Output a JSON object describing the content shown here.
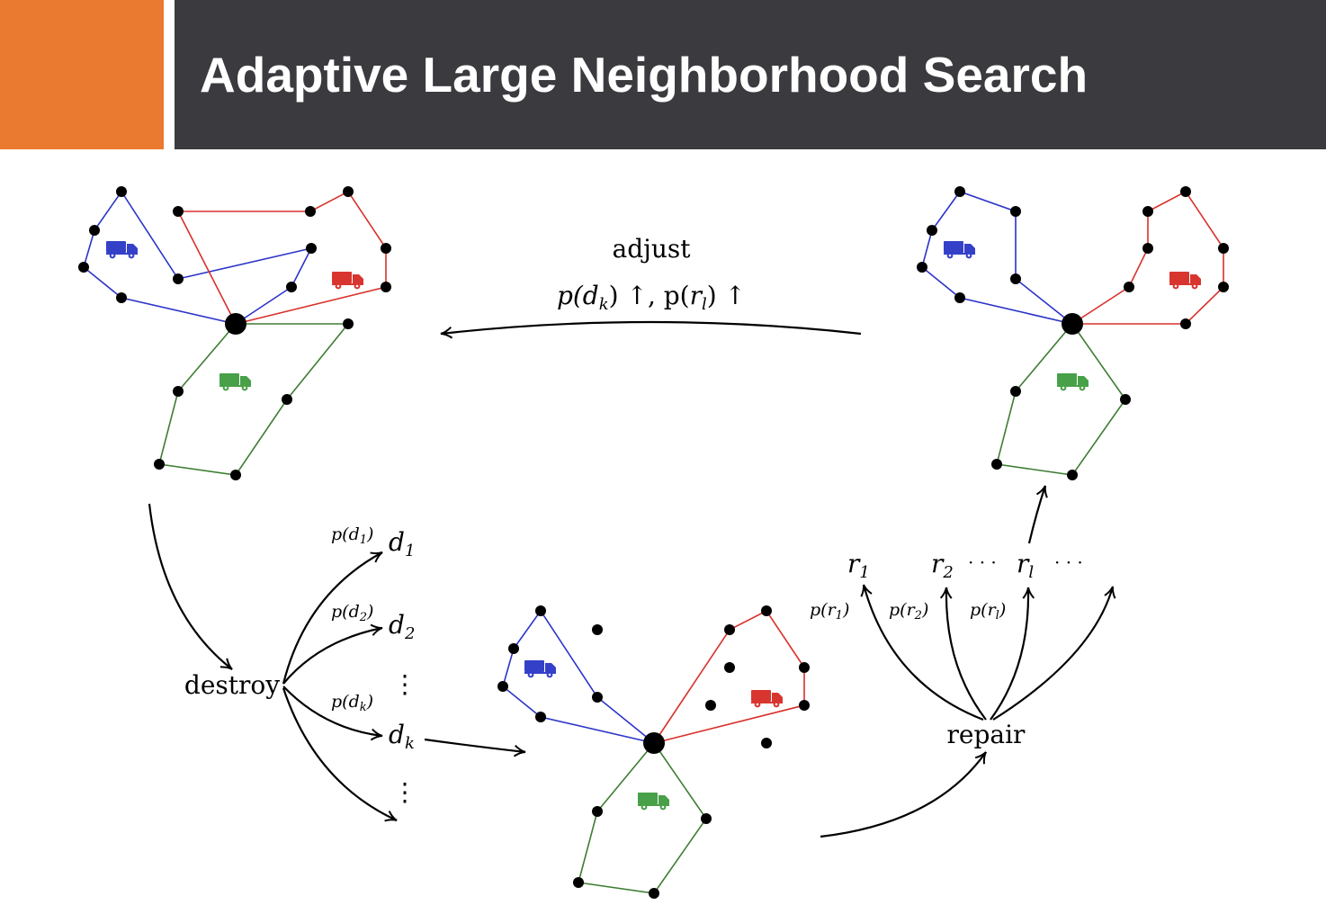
{
  "slide": {
    "title": "Adaptive Large Neighborhood Search",
    "accent_color": "#E97A30",
    "title_bar_color": "#3B3A3F"
  },
  "colors": {
    "route_blue": "#2C34C8",
    "route_red": "#D9312B",
    "route_green": "#3E7D32",
    "truck_blue": "#3440C8",
    "truck_red": "#D93530",
    "truck_green": "#48A048"
  },
  "icons": [
    "truck-icon"
  ],
  "labels": {
    "adjust": "adjust",
    "adjust_prob": {
      "p1": "p(",
      "d": "d",
      "k": "k",
      "mid": ") ↑, p(",
      "r": "r",
      "l": "l",
      "end": ") ↑"
    },
    "destroy": "destroy",
    "repair": "repair",
    "destroy_ops": [
      {
        "prob": "p(d",
        "sub": "1",
        "close": ")",
        "op": "d",
        "op_sub": "1"
      },
      {
        "prob": "p(d",
        "sub": "2",
        "close": ")",
        "op": "d",
        "op_sub": "2"
      },
      {
        "prob": "p(d",
        "sub": "k",
        "close": ")",
        "op": "d",
        "op_sub": "k"
      }
    ],
    "repair_ops": [
      {
        "prob": "p(r",
        "sub": "1",
        "close": ")",
        "op": "r",
        "op_sub": "1"
      },
      {
        "prob": "p(r",
        "sub": "2",
        "close": ")",
        "op": "r",
        "op_sub": "2"
      },
      {
        "prob": "p(r",
        "sub": "l",
        "close": ")",
        "op": "r",
        "op_sub": "l"
      }
    ],
    "vdots": "⋮",
    "cdots": "· · ·"
  }
}
